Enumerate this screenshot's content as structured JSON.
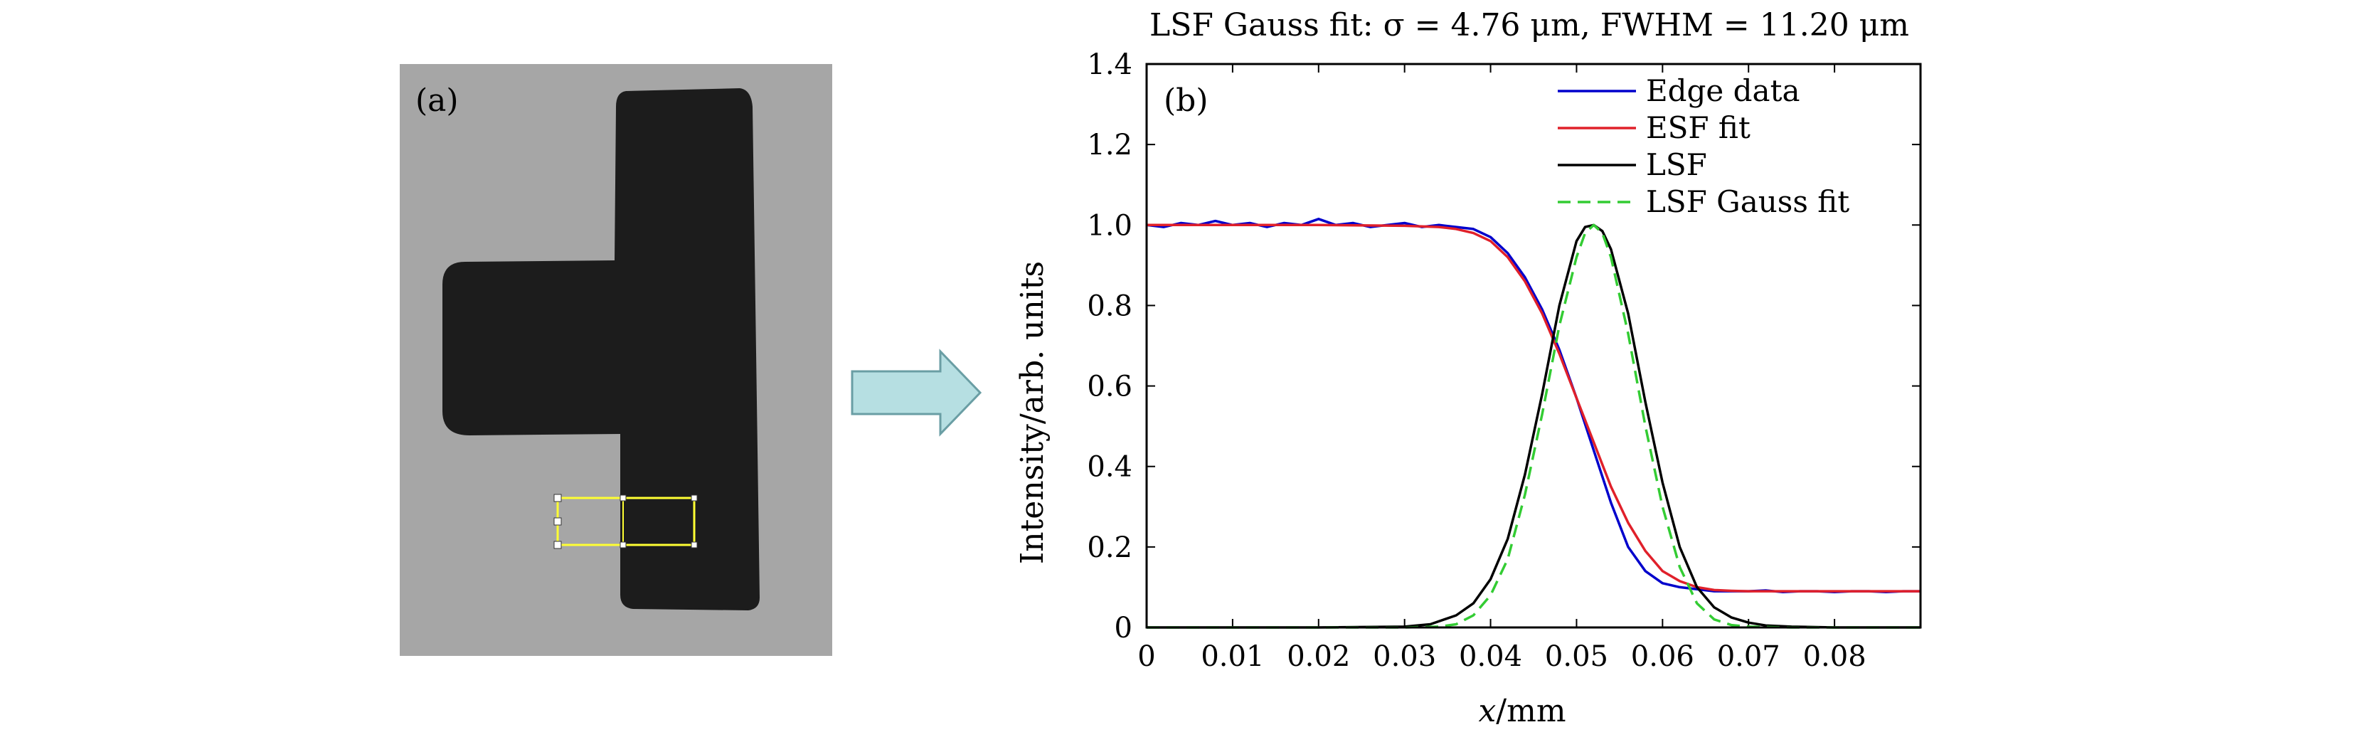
{
  "panel_a": {
    "label": "(a)",
    "colors": {
      "background": "#a6a6a6",
      "object": "#1c1c1c",
      "roi": "#ffff33"
    }
  },
  "arrow": {
    "colors": {
      "fill": "#b6dfe2",
      "stroke": "#6a9ea4"
    }
  },
  "chart_data": {
    "type": "line",
    "title": "LSF Gauss fit: σ = 4.76 μm, FWHM = 11.20 μm",
    "panel_label": "(b)",
    "xlabel_italic": "x",
    "xlabel_rest": "/mm",
    "ylabel": "Intensity/arb. units",
    "xlim": [
      0,
      0.09
    ],
    "ylim": [
      0,
      1.4
    ],
    "xticks": [
      0,
      0.01,
      0.02,
      0.03,
      0.04,
      0.05,
      0.06,
      0.07,
      0.08
    ],
    "xtick_labels": [
      "0",
      "0.01",
      "0.02",
      "0.03",
      "0.04",
      "0.05",
      "0.06",
      "0.07",
      "0.08"
    ],
    "yticks": [
      0,
      0.2,
      0.4,
      0.6,
      0.8,
      1.0,
      1.2,
      1.4
    ],
    "ytick_labels": [
      "0",
      "0.2",
      "0.4",
      "0.6",
      "0.8",
      "1.0",
      "1.2",
      "1.4"
    ],
    "grid": false,
    "legend_position": "top-right",
    "series": [
      {
        "name": "Edge data",
        "color": "#0000cc",
        "dash": "solid",
        "x": [
          0,
          0.002,
          0.004,
          0.006,
          0.008,
          0.01,
          0.012,
          0.014,
          0.016,
          0.018,
          0.02,
          0.022,
          0.024,
          0.026,
          0.028,
          0.03,
          0.032,
          0.034,
          0.036,
          0.038,
          0.04,
          0.042,
          0.044,
          0.046,
          0.048,
          0.05,
          0.052,
          0.054,
          0.056,
          0.058,
          0.06,
          0.062,
          0.064,
          0.066,
          0.068,
          0.07,
          0.072,
          0.074,
          0.076,
          0.078,
          0.08,
          0.082,
          0.084,
          0.086,
          0.088,
          0.09
        ],
        "y": [
          1.0,
          0.995,
          1.005,
          1.0,
          1.01,
          1.0,
          1.005,
          0.995,
          1.005,
          1.0,
          1.015,
          1.0,
          1.005,
          0.995,
          1.0,
          1.005,
          0.995,
          1.0,
          0.995,
          0.99,
          0.97,
          0.93,
          0.87,
          0.79,
          0.69,
          0.57,
          0.44,
          0.31,
          0.2,
          0.14,
          0.11,
          0.1,
          0.095,
          0.09,
          0.09,
          0.09,
          0.092,
          0.088,
          0.09,
          0.09,
          0.088,
          0.09,
          0.09,
          0.088,
          0.09,
          0.09
        ]
      },
      {
        "name": "ESF fit",
        "color": "#e0202a",
        "dash": "solid",
        "x": [
          0,
          0.01,
          0.02,
          0.03,
          0.034,
          0.036,
          0.038,
          0.04,
          0.042,
          0.044,
          0.046,
          0.048,
          0.05,
          0.052,
          0.054,
          0.056,
          0.058,
          0.06,
          0.062,
          0.064,
          0.066,
          0.068,
          0.07,
          0.08,
          0.09
        ],
        "y": [
          1.0,
          1.0,
          1.0,
          0.998,
          0.995,
          0.99,
          0.98,
          0.96,
          0.92,
          0.86,
          0.78,
          0.68,
          0.57,
          0.46,
          0.35,
          0.26,
          0.19,
          0.14,
          0.115,
          0.1,
          0.093,
          0.091,
          0.09,
          0.09,
          0.09
        ]
      },
      {
        "name": "LSF",
        "color": "#000000",
        "dash": "solid",
        "x": [
          0,
          0.01,
          0.02,
          0.03,
          0.033,
          0.036,
          0.038,
          0.04,
          0.042,
          0.044,
          0.046,
          0.048,
          0.05,
          0.051,
          0.052,
          0.053,
          0.054,
          0.056,
          0.058,
          0.06,
          0.062,
          0.064,
          0.066,
          0.068,
          0.07,
          0.072,
          0.075,
          0.08,
          0.09
        ],
        "y": [
          0,
          0,
          0,
          0.002,
          0.008,
          0.03,
          0.06,
          0.12,
          0.22,
          0.38,
          0.58,
          0.8,
          0.96,
          0.995,
          1.0,
          0.985,
          0.94,
          0.78,
          0.56,
          0.36,
          0.2,
          0.1,
          0.05,
          0.025,
          0.012,
          0.005,
          0.002,
          0,
          0
        ]
      },
      {
        "name": "LSF Gauss fit",
        "color": "#33cc33",
        "dash": "dashed",
        "x": [
          0,
          0.01,
          0.02,
          0.03,
          0.034,
          0.036,
          0.038,
          0.04,
          0.042,
          0.044,
          0.046,
          0.048,
          0.05,
          0.051,
          0.052,
          0.053,
          0.054,
          0.056,
          0.058,
          0.06,
          0.062,
          0.064,
          0.066,
          0.068,
          0.07,
          0.075,
          0.08,
          0.09
        ],
        "y": [
          0,
          0,
          0,
          0,
          0.002,
          0.008,
          0.03,
          0.08,
          0.17,
          0.33,
          0.53,
          0.75,
          0.92,
          0.98,
          1.0,
          0.98,
          0.92,
          0.73,
          0.5,
          0.3,
          0.15,
          0.06,
          0.02,
          0.006,
          0.002,
          0,
          0,
          0
        ]
      }
    ]
  }
}
